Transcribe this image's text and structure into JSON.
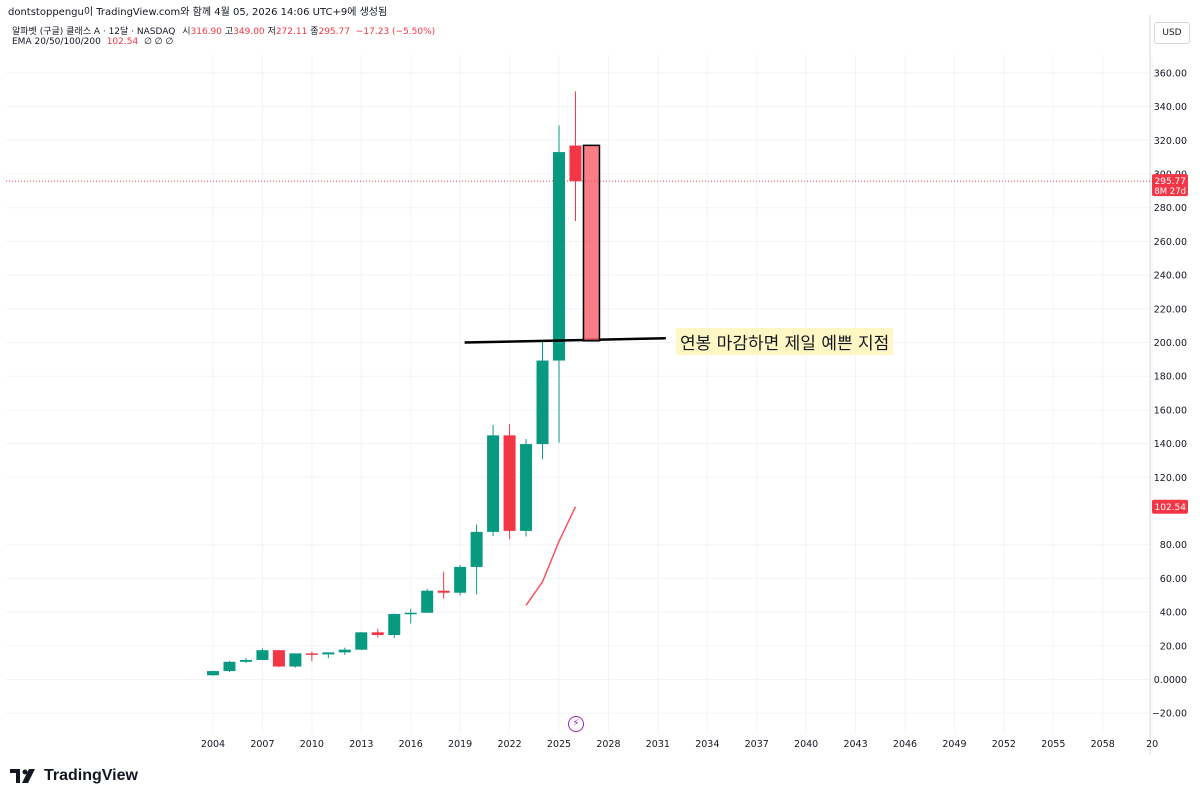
{
  "header": {
    "credit": "dontstoppengu이 TradingView.com와 함께 4월 05, 2026 14:06 UTC+9에 생성됨"
  },
  "legend": {
    "symbol": "알파벳 (구글) 클래스 A · 12달 · NASDAQ",
    "o_label": "시",
    "o_value": "316.90",
    "h_label": "고",
    "h_value": "349.00",
    "l_label": "저",
    "l_value": "272.11",
    "c_label": "종",
    "c_value": "295.77",
    "change": "−17.23 (−5.50%)",
    "ema_label": "EMA 20/50/100/200",
    "ema_value": "102.54",
    "ema_rest": "∅ ∅ ∅"
  },
  "currency_button": "USD",
  "price_badge": {
    "value": "295.77",
    "countdown": "8M 27d"
  },
  "ema_badge": "102.54",
  "annotation": "연봉 마감하면 제일 예쁜 지점",
  "brand": {
    "name": "TradingView",
    "icon": "tradingview-logo-icon"
  },
  "colors": {
    "up": "#089981",
    "down": "#f23645",
    "ema": "#f7525f",
    "highlight": "#f7525f",
    "accent_flash": "#9c27b0"
  },
  "chart_data": {
    "type": "candlestick",
    "interval": "12달",
    "ylim": [
      -25,
      370
    ],
    "y_ticks": [
      "−20.00",
      "0.0000",
      "20.00",
      "40.00",
      "60.00",
      "80.00",
      "102.54",
      "120.00",
      "140.00",
      "160.00",
      "180.00",
      "200.00",
      "220.00",
      "240.00",
      "260.00",
      "280.00",
      "300.00",
      "320.00",
      "340.00",
      "360.00"
    ],
    "x_ticks": [
      "2004",
      "2007",
      "2010",
      "2013",
      "2016",
      "2019",
      "2022",
      "2025",
      "2028",
      "2031",
      "2034",
      "2037",
      "2040",
      "2043",
      "2046",
      "2049",
      "2052",
      "2055",
      "2058",
      "20"
    ],
    "candles": [
      {
        "year": 2004,
        "o": 2.5,
        "h": 5,
        "l": 2.3,
        "c": 5
      },
      {
        "year": 2005,
        "o": 5,
        "h": 11,
        "l": 4.5,
        "c": 10.5
      },
      {
        "year": 2006,
        "o": 10.5,
        "h": 12.8,
        "l": 9.8,
        "c": 11.6
      },
      {
        "year": 2007,
        "o": 11.6,
        "h": 18.5,
        "l": 11.5,
        "c": 17.4
      },
      {
        "year": 2008,
        "o": 17.4,
        "h": 17.6,
        "l": 7.4,
        "c": 7.7
      },
      {
        "year": 2009,
        "o": 7.7,
        "h": 15.5,
        "l": 7.1,
        "c": 15.5
      },
      {
        "year": 2010,
        "o": 15.5,
        "h": 16.6,
        "l": 10.9,
        "c": 14.9
      },
      {
        "year": 2011,
        "o": 14.9,
        "h": 16.1,
        "l": 12.7,
        "c": 16.1
      },
      {
        "year": 2012,
        "o": 16.1,
        "h": 18.9,
        "l": 14.6,
        "c": 17.7
      },
      {
        "year": 2013,
        "o": 17.7,
        "h": 28.0,
        "l": 17.5,
        "c": 28.0
      },
      {
        "year": 2014,
        "o": 28.0,
        "h": 30.1,
        "l": 24.8,
        "c": 26.4
      },
      {
        "year": 2015,
        "o": 26.4,
        "h": 39.1,
        "l": 24.7,
        "c": 38.9
      },
      {
        "year": 2016,
        "o": 38.9,
        "h": 42.0,
        "l": 33.2,
        "c": 39.6
      },
      {
        "year": 2017,
        "o": 39.6,
        "h": 53.8,
        "l": 39.6,
        "c": 52.7
      },
      {
        "year": 2018,
        "o": 52.7,
        "h": 64.0,
        "l": 48.0,
        "c": 51.5
      },
      {
        "year": 2019,
        "o": 51.5,
        "h": 68.0,
        "l": 49.9,
        "c": 66.8
      },
      {
        "year": 2020,
        "o": 66.8,
        "h": 92.0,
        "l": 50.5,
        "c": 87.6
      },
      {
        "year": 2021,
        "o": 87.6,
        "h": 151.0,
        "l": 85.2,
        "c": 144.9
      },
      {
        "year": 2022,
        "o": 144.9,
        "h": 151.5,
        "l": 83.3,
        "c": 88.2
      },
      {
        "year": 2023,
        "o": 88.2,
        "h": 142.7,
        "l": 84.9,
        "c": 139.7
      },
      {
        "year": 2024,
        "o": 139.7,
        "h": 201.4,
        "l": 130.7,
        "c": 189.3
      },
      {
        "year": 2025,
        "o": 189.3,
        "h": 328.8,
        "l": 140.5,
        "c": 313.0
      },
      {
        "year": 2026,
        "o": 316.9,
        "h": 349.0,
        "l": 272.11,
        "c": 295.77
      }
    ],
    "ema": [
      {
        "year": 2023,
        "v": 44
      },
      {
        "year": 2024,
        "v": 58
      },
      {
        "year": 2025,
        "v": 82
      },
      {
        "year": 2026,
        "v": 102.54
      }
    ],
    "horizontal_line": {
      "from_year": 2020,
      "to_year": 2031,
      "value_from": 200,
      "value_to": 202.5
    },
    "highlight_box": {
      "year": 2026,
      "top": 317,
      "bottom": 201
    }
  }
}
